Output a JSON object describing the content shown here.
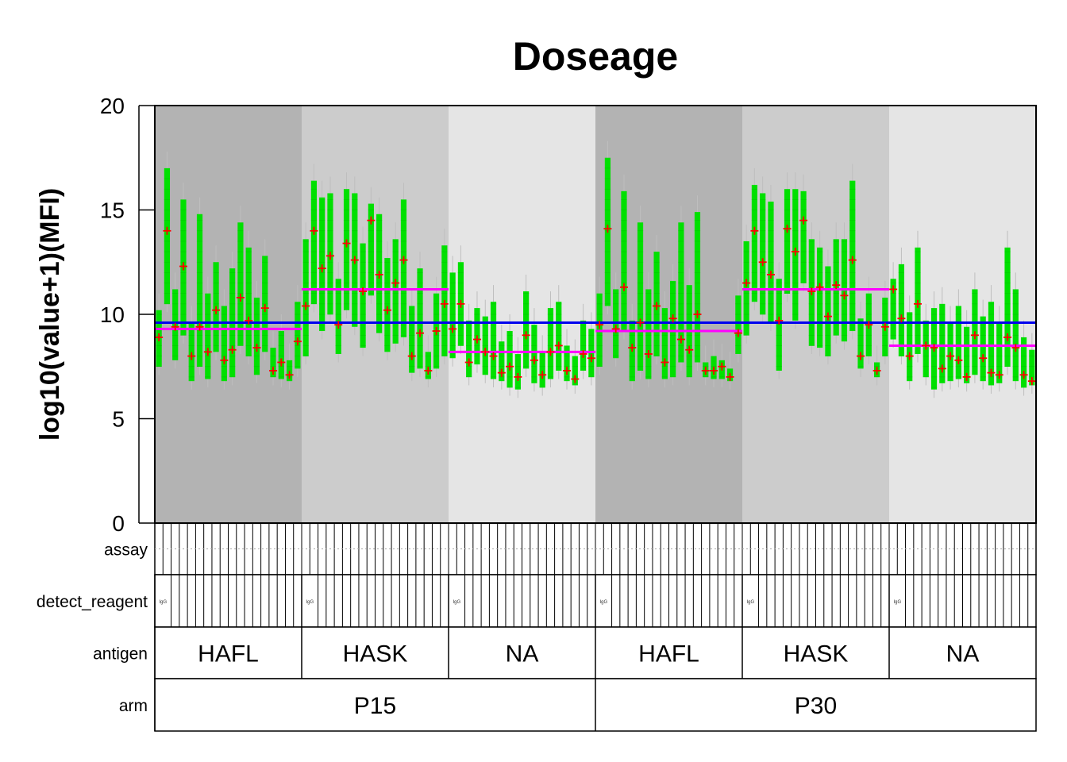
{
  "chart_data": {
    "type": "box",
    "title": "Doseage",
    "ylabel": "log10(value+1)(MFI)",
    "xlabel": "",
    "ylim": [
      0,
      20
    ],
    "yticks": [
      "0",
      "5",
      "10",
      "15",
      "20"
    ],
    "grid": false,
    "panel_rows": [
      {
        "label": "assay"
      },
      {
        "label": "detect_reagent"
      },
      {
        "label": "antigen"
      },
      {
        "label": "arm"
      }
    ],
    "arm_labels": [
      "P15",
      "P30"
    ],
    "antigen_labels": [
      "HAFL",
      "HASK",
      "NA",
      "HAFL",
      "HASK",
      "NA"
    ],
    "detect_reagent_labels": [
      "IgG"
    ],
    "group_shades": [
      "#b3b3b3",
      "#cccccc",
      "#e5e5e5",
      "#b3b3b3",
      "#cccccc",
      "#e5e5e5"
    ],
    "overall_mean": 9.6,
    "group_means": [
      9.3,
      11.2,
      8.2,
      9.2,
      11.2,
      8.5
    ],
    "colors": {
      "box": "#00e000",
      "mean_marker": "#ff0000",
      "overall_line": "#0000ee",
      "group_line": "#ff00ff",
      "whisker": "#bebebe",
      "outlier": "#000000"
    },
    "groups": [
      {
        "arm": "P15",
        "antigen": "HAFL",
        "box_means": [
          8.9,
          14.0,
          9.4,
          12.3,
          8.0,
          9.4,
          8.2,
          10.2,
          7.8,
          8.3,
          10.8,
          9.7,
          8.4,
          10.3,
          7.3,
          7.7,
          7.1,
          8.7
        ],
        "box_mins": [
          7.5,
          10.5,
          7.8,
          9.0,
          6.8,
          7.5,
          6.9,
          8.2,
          6.8,
          7.0,
          8.5,
          8.0,
          7.1,
          8.2,
          7.0,
          6.9,
          6.8,
          7.4
        ],
        "box_maxs": [
          10.2,
          17.0,
          11.2,
          15.5,
          9.6,
          14.8,
          11.0,
          12.5,
          10.4,
          12.2,
          14.4,
          13.2,
          10.8,
          12.8,
          8.4,
          9.2,
          7.8,
          10.6
        ]
      },
      {
        "arm": "P15",
        "antigen": "HASK",
        "box_means": [
          10.4,
          14.0,
          12.2,
          12.8,
          9.5,
          13.4,
          12.6,
          11.1,
          14.5,
          11.9,
          10.2,
          11.5,
          12.6,
          8.0,
          9.1,
          7.3,
          9.2,
          10.5
        ],
        "box_mins": [
          8.0,
          10.5,
          9.2,
          10.0,
          8.1,
          10.2,
          9.4,
          8.4,
          10.9,
          9.1,
          8.2,
          8.6,
          8.9,
          7.2,
          7.4,
          6.9,
          7.4,
          8.0
        ],
        "box_maxs": [
          13.6,
          16.4,
          15.6,
          15.8,
          11.7,
          16.0,
          15.8,
          13.4,
          15.3,
          14.8,
          12.7,
          13.6,
          15.5,
          10.4,
          12.2,
          8.2,
          11.0,
          13.3
        ]
      },
      {
        "arm": "NA-P15",
        "antigen": "NA",
        "box_means": [
          9.3,
          10.5,
          7.7,
          8.8,
          8.2,
          8.0,
          7.2,
          7.5,
          7.0,
          9.0,
          7.8,
          7.1,
          8.2,
          8.5,
          7.3,
          6.9,
          8.1,
          7.9
        ],
        "box_mins": [
          7.9,
          8.5,
          7.0,
          7.6,
          7.1,
          6.9,
          6.8,
          6.5,
          6.4,
          7.4,
          6.7,
          6.5,
          6.9,
          7.3,
          6.8,
          6.6,
          7.3,
          7.0
        ],
        "box_maxs": [
          12.0,
          12.5,
          9.7,
          10.3,
          9.9,
          10.6,
          8.7,
          9.2,
          8.1,
          11.1,
          9.5,
          8.2,
          10.3,
          10.6,
          8.5,
          8.0,
          9.7,
          9.3
        ]
      },
      {
        "arm": "P30",
        "antigen": "HAFL",
        "box_means": [
          9.5,
          14.1,
          9.3,
          11.3,
          8.4,
          9.6,
          8.1,
          10.4,
          7.7,
          9.8,
          8.8,
          8.3,
          10.0,
          7.3,
          7.3,
          7.5,
          7.0,
          9.1
        ],
        "box_mins": [
          7.5,
          10.4,
          7.9,
          9.2,
          6.8,
          7.3,
          6.9,
          8.0,
          6.9,
          7.0,
          7.7,
          7.0,
          7.7,
          7.0,
          6.9,
          6.9,
          6.8,
          8.1
        ],
        "box_maxs": [
          11.0,
          17.5,
          11.2,
          15.9,
          9.7,
          14.4,
          11.2,
          13.0,
          10.3,
          11.6,
          14.4,
          11.4,
          14.9,
          7.7,
          8.0,
          7.8,
          7.4,
          10.9
        ]
      },
      {
        "arm": "P30",
        "antigen": "HASK",
        "box_means": [
          11.5,
          14.0,
          12.5,
          11.9,
          9.7,
          14.1,
          13.0,
          14.5,
          11.1,
          11.3,
          9.9,
          11.4,
          10.9,
          12.6,
          8.0,
          9.5,
          7.3,
          9.4
        ],
        "box_mins": [
          9.0,
          10.6,
          10.0,
          9.6,
          7.3,
          11.0,
          9.7,
          11.5,
          8.5,
          8.4,
          8.0,
          9.0,
          8.7,
          9.2,
          7.4,
          8.0,
          7.0,
          8.0
        ],
        "box_maxs": [
          13.5,
          16.2,
          15.8,
          15.4,
          11.7,
          16.0,
          16.0,
          15.9,
          13.6,
          13.2,
          12.3,
          13.6,
          13.6,
          16.4,
          9.8,
          11.0,
          7.7,
          10.8
        ]
      },
      {
        "arm": "P30",
        "antigen": "NA",
        "box_means": [
          11.2,
          9.8,
          8.0,
          10.5,
          8.5,
          8.4,
          7.4,
          8.0,
          7.8,
          7.0,
          9.0,
          7.9,
          7.2,
          7.1,
          8.9,
          8.4,
          7.1,
          6.8
        ],
        "box_mins": [
          8.8,
          8.0,
          6.8,
          8.1,
          7.0,
          6.4,
          6.7,
          6.8,
          6.9,
          6.7,
          7.1,
          6.8,
          6.6,
          6.7,
          7.5,
          6.8,
          6.5,
          6.6
        ],
        "box_maxs": [
          11.7,
          12.4,
          10.1,
          13.2,
          9.7,
          10.3,
          10.5,
          9.6,
          10.4,
          9.4,
          11.2,
          9.9,
          10.6,
          9.6,
          13.2,
          11.2,
          8.9,
          8.3
        ]
      }
    ]
  }
}
